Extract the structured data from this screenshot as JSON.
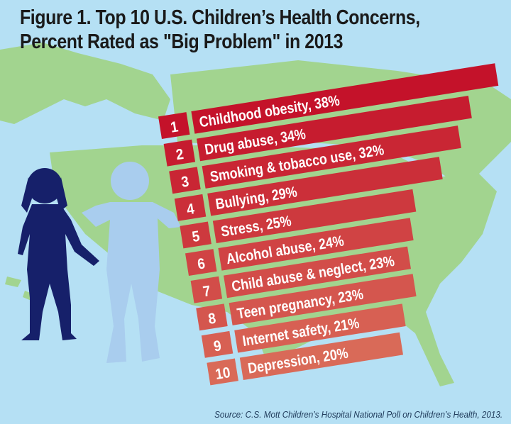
{
  "chart_data": {
    "type": "bar",
    "orientation": "horizontal",
    "title": "Figure 1. Top 10 U.S. Children’s Health Concerns, Percent Rated as \"Big Problem\" in 2013",
    "title_lines": [
      "Figure 1. Top 10 U.S. Children’s Health Concerns,",
      "Percent Rated as \"Big Problem\" in 2013"
    ],
    "ranks": [
      "1",
      "2",
      "3",
      "4",
      "5",
      "6",
      "7",
      "8",
      "9",
      "10"
    ],
    "categories": [
      "Childhood obesity",
      "Drug abuse",
      "Smoking & tobacco use",
      "Bullying",
      "Stress",
      "Alcohol abuse",
      "Child abuse & neglect",
      "Teen pregnancy",
      "Internet safety",
      "Depression"
    ],
    "values": [
      38,
      34,
      32,
      29,
      25,
      24,
      23,
      23,
      21,
      20
    ],
    "unit": "%",
    "labels": [
      "Childhood obesity, 38%",
      "Drug abuse, 34%",
      "Smoking & tobacco use, 32%",
      "Bullying, 29%",
      "Stress, 25%",
      "Alcohol abuse, 24%",
      "Child abuse & neglect, 23%",
      "Teen pregnancy, 23%",
      "Internet safety, 21%",
      "Depression, 20%"
    ],
    "source": "Source: C.S. Mott Children’s Hospital National Poll on Children’s Health, 2013.",
    "colors": {
      "top_bar": "#c4122a",
      "bottom_bar": "#d96a58",
      "background": "#b5e0f4",
      "land": "#a2d48f",
      "girl": "#16206a",
      "boy": "#a9cdee"
    }
  }
}
